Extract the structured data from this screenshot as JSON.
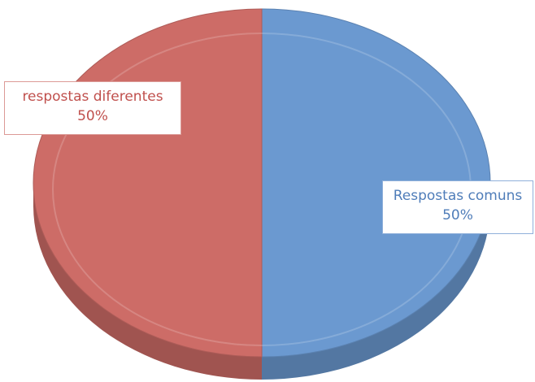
{
  "chart_data": {
    "type": "pie",
    "categories": [
      "Respostas comuns",
      "respostas diferentes"
    ],
    "values": [
      50,
      50
    ],
    "value_labels": [
      "50%",
      "50%"
    ],
    "colors": [
      "#6b99d0",
      "#cd6c67"
    ]
  }
}
